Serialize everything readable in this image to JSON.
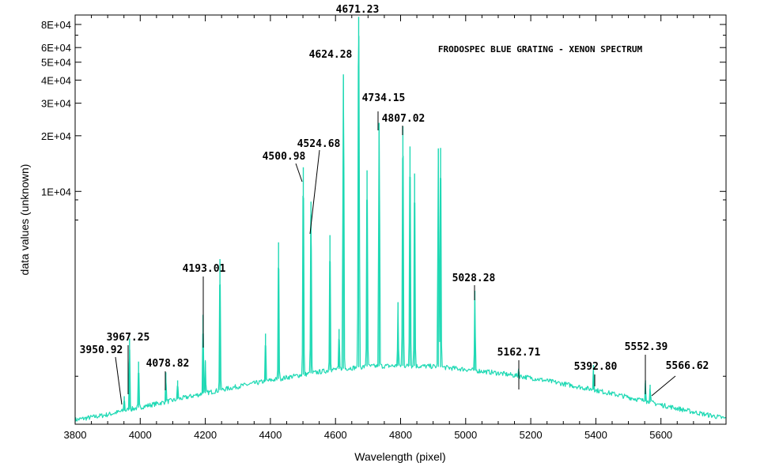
{
  "chart_data": {
    "type": "line",
    "title": "FRODOSPEC BLUE GRATING - XENON SPECTRUM",
    "xlabel": "Wavelength (pixel)",
    "ylabel": "data values (unknown)",
    "x_ticks": [
      "3800",
      "4000",
      "4200",
      "4400",
      "4600",
      "4800",
      "5000",
      "5200",
      "5400",
      "5600"
    ],
    "y_ticks": [
      "1E+04",
      "2E+04",
      "3E+04",
      "4E+04",
      "5E+04",
      "6E+04",
      "8E+04"
    ],
    "xlim": [
      3800,
      5800
    ],
    "y_scale": "log",
    "ylim": [
      550,
      90000
    ],
    "line_color": "#1fd9b4",
    "continuum": {
      "x": [
        3800,
        3900,
        4000,
        4100,
        4200,
        4300,
        4400,
        4500,
        4600,
        4700,
        4800,
        4900,
        5000,
        5100,
        5200,
        5300,
        5400,
        5500,
        5600,
        5700,
        5800
      ],
      "y": [
        580,
        620,
        680,
        740,
        810,
        880,
        950,
        1020,
        1090,
        1130,
        1140,
        1130,
        1090,
        1040,
        980,
        910,
        840,
        770,
        700,
        640,
        590
      ]
    },
    "peaks": [
      {
        "x": 3950.92,
        "y": 780
      },
      {
        "x": 3967.25,
        "y": 1600
      },
      {
        "x": 3995,
        "y": 1200
      },
      {
        "x": 4078.82,
        "y": 1050
      },
      {
        "x": 4115,
        "y": 950
      },
      {
        "x": 4193.01,
        "y": 2150
      },
      {
        "x": 4200,
        "y": 1200
      },
      {
        "x": 4245,
        "y": 4300
      },
      {
        "x": 4385,
        "y": 1700
      },
      {
        "x": 4425,
        "y": 5300
      },
      {
        "x": 4500.98,
        "y": 13500
      },
      {
        "x": 4524.68,
        "y": 8800
      },
      {
        "x": 4583,
        "y": 5800
      },
      {
        "x": 4611,
        "y": 1800
      },
      {
        "x": 4624.28,
        "y": 43000
      },
      {
        "x": 4671.23,
        "y": 88000
      },
      {
        "x": 4697,
        "y": 13000
      },
      {
        "x": 4734.15,
        "y": 23500
      },
      {
        "x": 4792,
        "y": 2500
      },
      {
        "x": 4807.02,
        "y": 22500
      },
      {
        "x": 4829,
        "y": 17500
      },
      {
        "x": 4843,
        "y": 12500
      },
      {
        "x": 4916,
        "y": 17000
      },
      {
        "x": 4923,
        "y": 17200
      },
      {
        "x": 5028.28,
        "y": 2900
      },
      {
        "x": 5162.71,
        "y": 1100
      },
      {
        "x": 5392.8,
        "y": 1150
      },
      {
        "x": 5552.39,
        "y": 950
      },
      {
        "x": 5566.62,
        "y": 900
      }
    ],
    "annotations": [
      {
        "text": "4671.23",
        "x": 4671.23
      },
      {
        "text": "4624.28",
        "x": 4624.28
      },
      {
        "text": "4734.15",
        "x": 4734.15
      },
      {
        "text": "4807.02",
        "x": 4807.02
      },
      {
        "text": "4524.68",
        "x": 4524.68
      },
      {
        "text": "4500.98",
        "x": 4500.98
      },
      {
        "text": "4193.01",
        "x": 4193.01
      },
      {
        "text": "5028.28",
        "x": 5028.28
      },
      {
        "text": "3967.25",
        "x": 3967.25
      },
      {
        "text": "3950.92",
        "x": 3950.92
      },
      {
        "text": "4078.82",
        "x": 4078.82
      },
      {
        "text": "5162.71",
        "x": 5162.71
      },
      {
        "text": "5392.80",
        "x": 5392.8
      },
      {
        "text": "5552.39",
        "x": 5552.39
      },
      {
        "text": "5566.62",
        "x": 5566.62
      }
    ]
  }
}
